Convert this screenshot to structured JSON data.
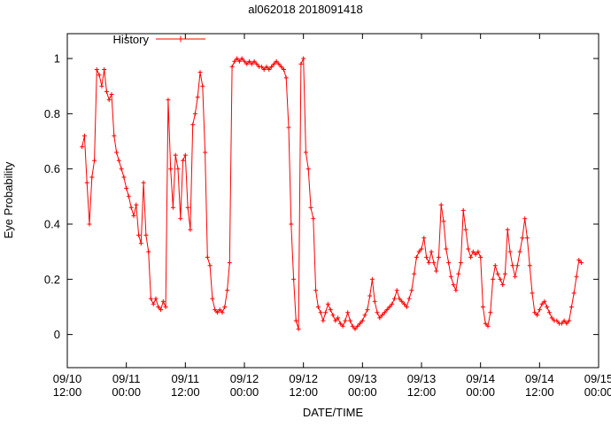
{
  "chart_data": {
    "type": "line",
    "title": "al062018 2018091418",
    "xlabel": "DATE/TIME",
    "ylabel": "Eye Probability",
    "background_color": "#ffffff",
    "axis_color": "#000000",
    "grid": false,
    "legend_position": "top-left-inside",
    "x_axis": {
      "min_hours": 0,
      "max_hours": 108,
      "tick_interval_hours": 12,
      "tick_labels": [
        [
          "09/10",
          "12:00"
        ],
        [
          "09/11",
          "00:00"
        ],
        [
          "09/11",
          "12:00"
        ],
        [
          "09/12",
          "00:00"
        ],
        [
          "09/12",
          "12:00"
        ],
        [
          "09/13",
          "00:00"
        ],
        [
          "09/13",
          "12:00"
        ],
        [
          "09/14",
          "00:00"
        ],
        [
          "09/14",
          "12:00"
        ],
        [
          "09/15",
          "00:00"
        ]
      ]
    },
    "y_axis": {
      "ticks": [
        0,
        0.2,
        0.4,
        0.6,
        0.8,
        1
      ],
      "tick_labels": [
        "0",
        "0.2",
        "0.4",
        "0.6",
        "0.8",
        "1"
      ],
      "range": [
        -0.12,
        1.09
      ]
    },
    "series": [
      {
        "name": "History",
        "color": "#ff0000",
        "marker": "plus",
        "start_hours": 3,
        "step_hours": 0.5,
        "values": [
          0.68,
          0.72,
          0.55,
          0.4,
          0.57,
          0.63,
          0.96,
          0.94,
          0.9,
          0.96,
          0.88,
          0.85,
          0.87,
          0.72,
          0.66,
          0.63,
          0.6,
          0.57,
          0.53,
          0.5,
          0.46,
          0.43,
          0.47,
          0.36,
          0.33,
          0.55,
          0.36,
          0.3,
          0.13,
          0.11,
          0.13,
          0.1,
          0.09,
          0.12,
          0.1,
          0.85,
          0.6,
          0.46,
          0.65,
          0.6,
          0.42,
          0.63,
          0.65,
          0.46,
          0.38,
          0.76,
          0.8,
          0.86,
          0.95,
          0.9,
          0.66,
          0.28,
          0.25,
          0.13,
          0.09,
          0.08,
          0.09,
          0.08,
          0.1,
          0.16,
          0.26,
          0.97,
          0.99,
          1.0,
          0.99,
          1.0,
          0.99,
          0.98,
          0.99,
          0.98,
          0.99,
          0.98,
          0.97,
          0.97,
          0.96,
          0.97,
          0.96,
          0.97,
          0.98,
          0.99,
          0.98,
          0.97,
          0.96,
          0.93,
          0.75,
          0.4,
          0.2,
          0.05,
          0.02,
          0.98,
          1.0,
          0.66,
          0.6,
          0.46,
          0.42,
          0.16,
          0.1,
          0.08,
          0.05,
          0.08,
          0.11,
          0.09,
          0.07,
          0.05,
          0.06,
          0.04,
          0.03,
          0.05,
          0.08,
          0.05,
          0.03,
          0.02,
          0.03,
          0.04,
          0.05,
          0.07,
          0.09,
          0.14,
          0.2,
          0.12,
          0.08,
          0.06,
          0.07,
          0.08,
          0.09,
          0.1,
          0.11,
          0.13,
          0.16,
          0.13,
          0.12,
          0.11,
          0.1,
          0.13,
          0.16,
          0.22,
          0.28,
          0.3,
          0.31,
          0.35,
          0.28,
          0.26,
          0.3,
          0.26,
          0.23,
          0.28,
          0.47,
          0.41,
          0.31,
          0.26,
          0.21,
          0.18,
          0.16,
          0.22,
          0.26,
          0.45,
          0.38,
          0.31,
          0.28,
          0.3,
          0.29,
          0.3,
          0.28,
          0.1,
          0.04,
          0.03,
          0.08,
          0.2,
          0.25,
          0.22,
          0.2,
          0.18,
          0.22,
          0.38,
          0.3,
          0.25,
          0.21,
          0.25,
          0.3,
          0.35,
          0.42,
          0.35,
          0.25,
          0.15,
          0.08,
          0.07,
          0.09,
          0.11,
          0.12,
          0.1,
          0.08,
          0.06,
          0.05,
          0.05,
          0.04,
          0.04,
          0.05,
          0.04,
          0.05,
          0.1,
          0.15,
          0.21,
          0.27,
          0.26
        ]
      }
    ]
  }
}
